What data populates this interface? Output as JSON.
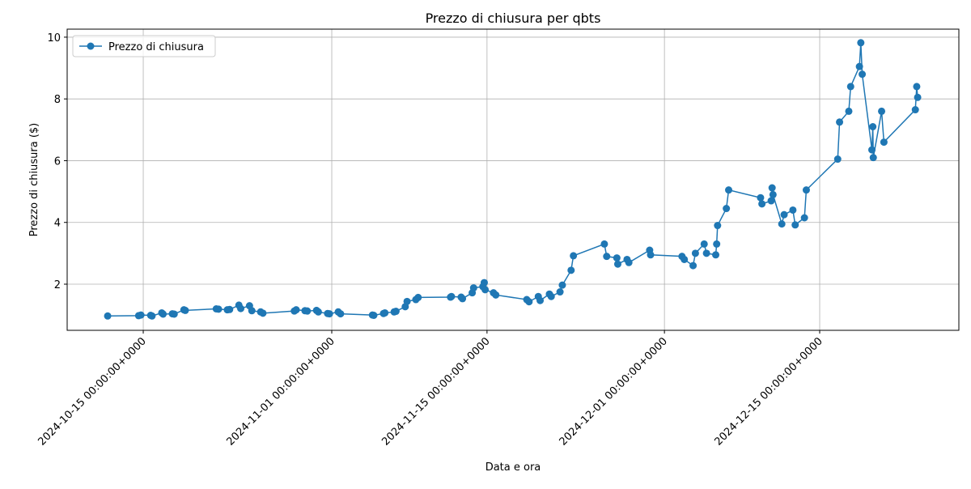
{
  "chart_data": {
    "type": "line",
    "title": "Prezzo di chiusura per qbts",
    "x_label": "Data e ora",
    "y_label": "Prezzo di chiusura ($)",
    "x": [
      "2024-10-11 19:00",
      "2024-10-14 14:00",
      "2024-10-14 19:00",
      "2024-10-15 16:00",
      "2024-10-15 19:00",
      "2024-10-16 16:00",
      "2024-10-16 19:00",
      "2024-10-17 15:00",
      "2024-10-17 19:00",
      "2024-10-18 16:00",
      "2024-10-18 19:00",
      "2024-10-21 14:00",
      "2024-10-21 19:00",
      "2024-10-22 14:00",
      "2024-10-22 19:00",
      "2024-10-23 15:00",
      "2024-10-23 19:00",
      "2024-10-24 14:00",
      "2024-10-24 19:00",
      "2024-10-25 14:00",
      "2024-10-25 19:00",
      "2024-10-28 15:00",
      "2024-10-28 19:00",
      "2024-10-29 14:00",
      "2024-10-29 19:00",
      "2024-10-30 15:00",
      "2024-10-30 19:00",
      "2024-10-31 15:00",
      "2024-10-31 19:00",
      "2024-11-01 14:00",
      "2024-11-01 19:00",
      "2024-11-04 16:00",
      "2024-11-04 19:00",
      "2024-11-05 16:00",
      "2024-11-05 19:00",
      "2024-11-06 15:00",
      "2024-11-06 19:00",
      "2024-11-07 15:00",
      "2024-11-07 19:00",
      "2024-11-08 14:00",
      "2024-11-08 19:00",
      "2024-11-11 17:00",
      "2024-11-11 19:00",
      "2024-11-12 16:00",
      "2024-11-12 19:00",
      "2024-11-13 16:00",
      "2024-11-13 19:00",
      "2024-11-14 15:00",
      "2024-11-14 18:00",
      "2024-11-14 20:00",
      "2024-11-15 14:00",
      "2024-11-15 19:00",
      "2024-11-18 14:00",
      "2024-11-18 19:00",
      "2024-11-19 15:00",
      "2024-11-19 19:00",
      "2024-11-20 15:00",
      "2024-11-20 19:00",
      "2024-11-21 14:00",
      "2024-11-21 19:00",
      "2024-11-22 14:00",
      "2024-11-22 19:00",
      "2024-11-25 14:00",
      "2024-11-25 19:00",
      "2024-11-26 17:00",
      "2024-11-26 19:00",
      "2024-11-27 15:00",
      "2024-11-27 19:00",
      "2024-11-29 16:00",
      "2024-11-29 18:00",
      "2024-12-02 14:00",
      "2024-12-02 19:00",
      "2024-12-03 14:00",
      "2024-12-03 19:00",
      "2024-12-04 14:00",
      "2024-12-04 19:00",
      "2024-12-05 15:00",
      "2024-12-05 17:00",
      "2024-12-05 19:00",
      "2024-12-06 14:00",
      "2024-12-06 19:00",
      "2024-12-09 16:00",
      "2024-12-09 19:00",
      "2024-12-10 15:00",
      "2024-12-10 17:00",
      "2024-12-10 19:00",
      "2024-12-11 14:00",
      "2024-12-11 19:00",
      "2024-12-12 14:00",
      "2024-12-12 19:00",
      "2024-12-13 15:00",
      "2024-12-13 19:00",
      "2024-12-16 15:00",
      "2024-12-16 19:00",
      "2024-12-17 15:00",
      "2024-12-17 19:00",
      "2024-12-18 14:00",
      "2024-12-18 17:00",
      "2024-12-18 20:00",
      "2024-12-19 17:00",
      "2024-12-19 19:00",
      "2024-12-19 20:00",
      "2024-12-20 14:00",
      "2024-12-20 19:00",
      "2024-12-23 15:00",
      "2024-12-23 18:00",
      "2024-12-23 20:00"
    ],
    "series": [
      {
        "name": "Prezzo di chiusura",
        "color": "#1f77b4",
        "values": [
          0.97,
          0.98,
          1.0,
          0.99,
          0.97,
          1.07,
          1.03,
          1.04,
          1.03,
          1.17,
          1.15,
          1.2,
          1.19,
          1.17,
          1.18,
          1.32,
          1.21,
          1.3,
          1.14,
          1.1,
          1.06,
          1.13,
          1.17,
          1.14,
          1.13,
          1.15,
          1.1,
          1.05,
          1.04,
          1.1,
          1.04,
          1.0,
          0.99,
          1.05,
          1.07,
          1.1,
          1.12,
          1.27,
          1.44,
          1.5,
          1.57,
          1.58,
          1.6,
          1.58,
          1.53,
          1.72,
          1.88,
          1.92,
          2.05,
          1.82,
          1.72,
          1.65,
          1.5,
          1.43,
          1.6,
          1.47,
          1.68,
          1.6,
          1.75,
          1.97,
          2.45,
          2.92,
          3.3,
          2.9,
          2.85,
          2.65,
          2.8,
          2.7,
          3.1,
          2.95,
          2.9,
          2.8,
          2.6,
          3.0,
          3.3,
          3.0,
          2.95,
          3.3,
          3.9,
          4.45,
          5.05,
          4.8,
          4.6,
          4.7,
          5.12,
          4.9,
          3.95,
          4.25,
          4.4,
          3.92,
          4.15,
          5.05,
          6.05,
          7.25,
          7.6,
          8.4,
          9.05,
          9.82,
          8.8,
          6.35,
          7.1,
          6.1,
          7.6,
          6.6,
          7.65,
          8.4,
          8.05
        ]
      }
    ],
    "xlim": [
      "2024-10-08 03:20",
      "2024-12-27 13:12"
    ],
    "xticks": [
      {
        "value": "2024-10-15 00:00",
        "label": "2024-10-15 00:00:00+0000"
      },
      {
        "value": "2024-11-01 00:00",
        "label": "2024-11-01 00:00:00+0000"
      },
      {
        "value": "2024-11-15 00:00",
        "label": "2024-11-15 00:00:00+0000"
      },
      {
        "value": "2024-12-01 00:00",
        "label": "2024-12-01 00:00:00+0000"
      },
      {
        "value": "2024-12-15 00:00",
        "label": "2024-12-15 00:00:00+0000"
      }
    ],
    "ylim": [
      0.505,
      10.26
    ],
    "yticks": [
      2,
      4,
      6,
      8,
      10
    ],
    "grid": true,
    "legend": "upper-left"
  }
}
